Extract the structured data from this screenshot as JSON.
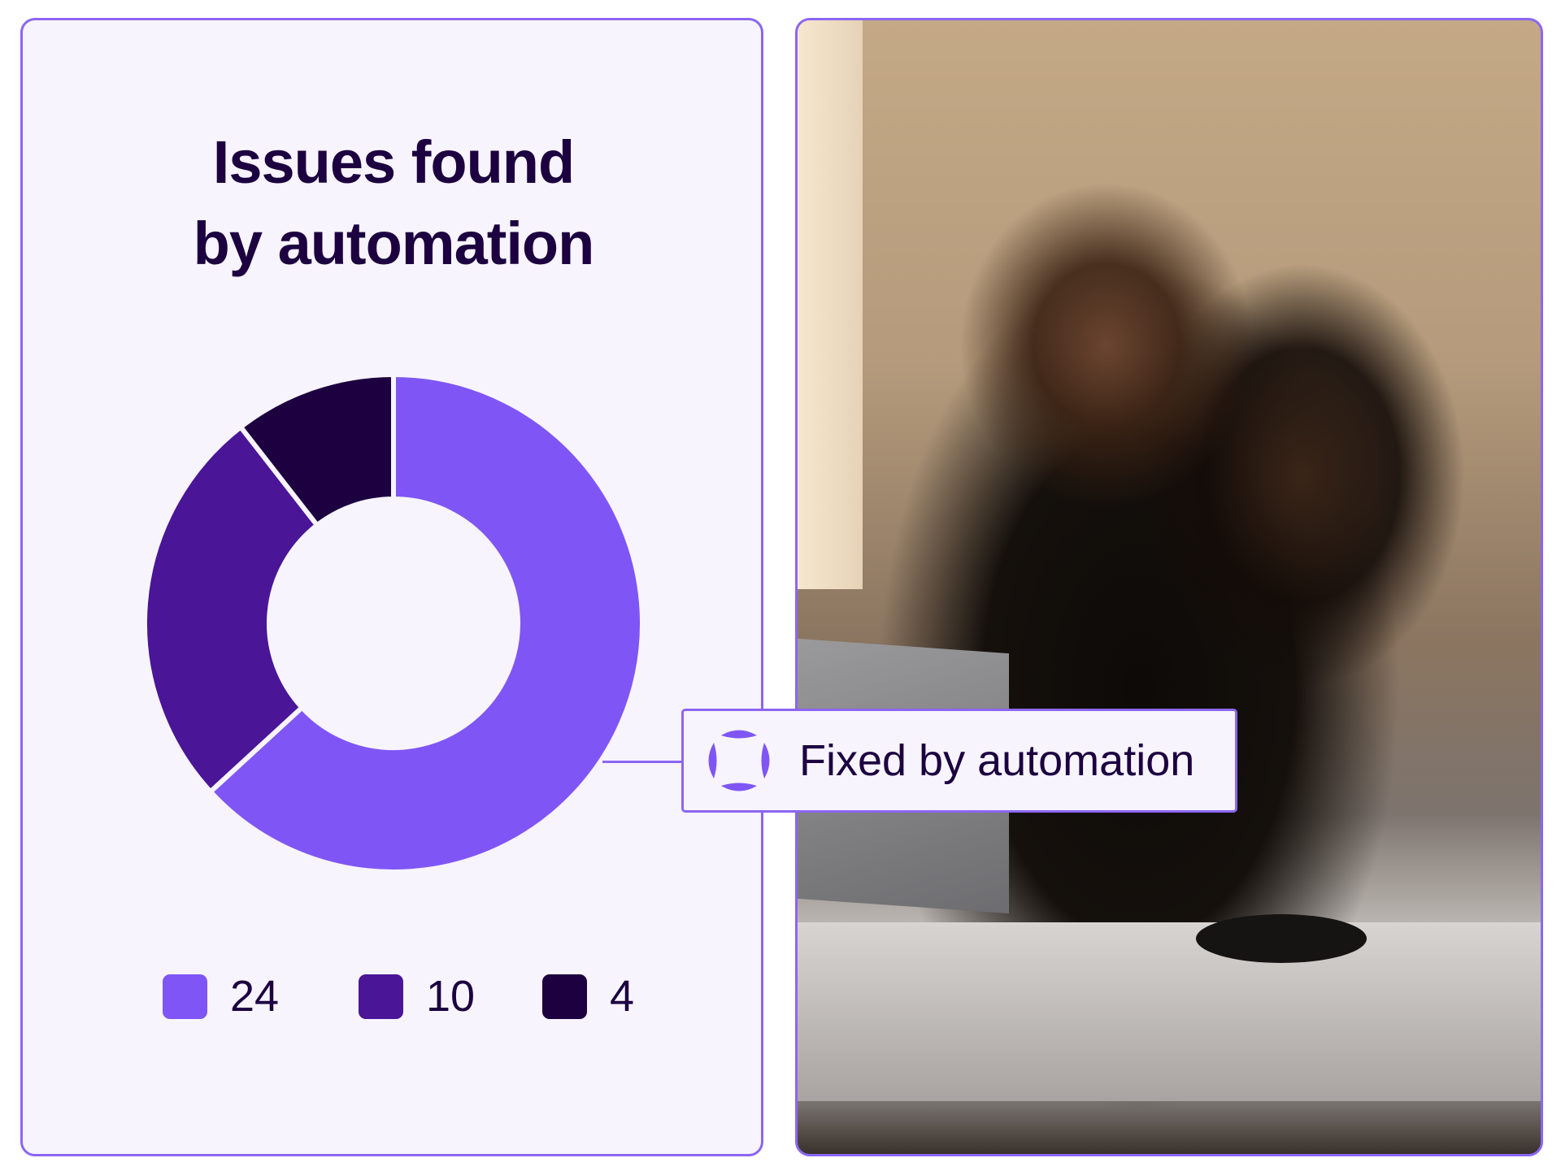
{
  "chart_data": {
    "type": "donut",
    "title": "Issues found by automation",
    "title_lines": [
      "Issues found",
      "by automation"
    ],
    "values": [
      24,
      10,
      4
    ],
    "colors": [
      "#7f56f5",
      "#4a1597",
      "#1c0040"
    ],
    "legend": [
      "24",
      "10",
      "4"
    ],
    "legend_placement": "bottom",
    "start": "top",
    "direction": "clockwise"
  },
  "callout": {
    "label": "Fixed by automation",
    "icon": "automation-logo-icon",
    "target_slice": 0,
    "color": "#8b66f2"
  },
  "photo": {
    "description_icon": "photo-people-at-laptop"
  }
}
